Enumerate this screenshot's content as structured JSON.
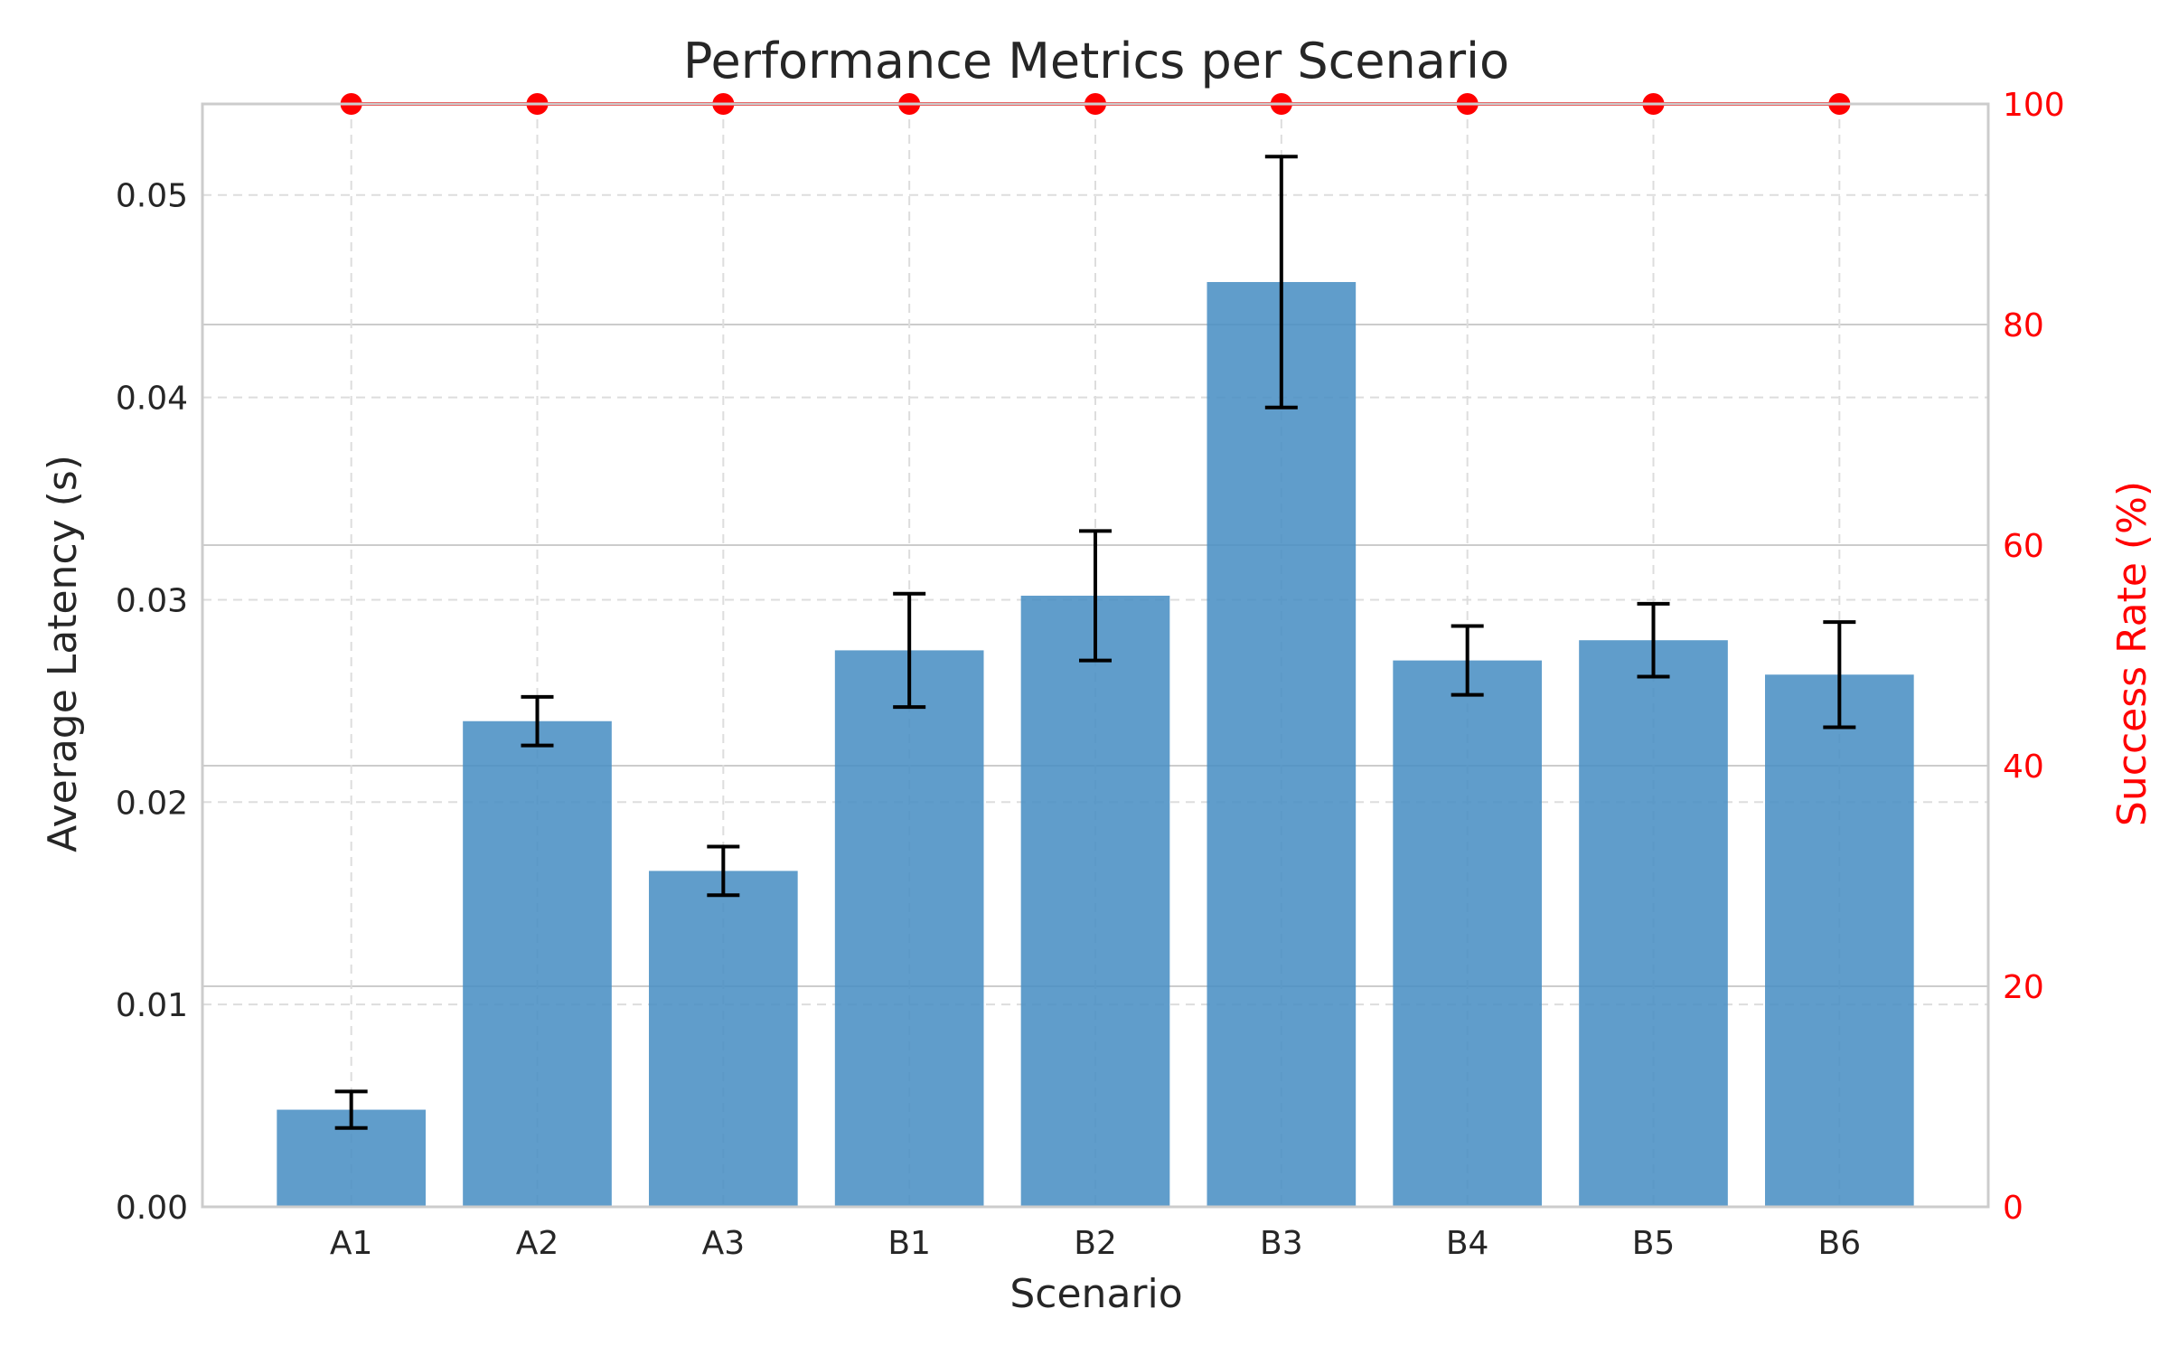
{
  "chart_data": {
    "type": "bar",
    "title": "Performance Metrics per Scenario",
    "xlabel": "Scenario",
    "ylabel": "Average Latency (s)",
    "y2label": "Success Rate (%)",
    "categories": [
      "A1",
      "A2",
      "A3",
      "B1",
      "B2",
      "B3",
      "B4",
      "B5",
      "B6"
    ],
    "series": [
      {
        "type": "bar",
        "axis": "left",
        "values": [
          0.0048,
          0.024,
          0.0166,
          0.0275,
          0.0302,
          0.0457,
          0.027,
          0.028,
          0.0263
        ],
        "errors": [
          0.0009,
          0.0012,
          0.0012,
          0.0028,
          0.0032,
          0.0062,
          0.0017,
          0.0018,
          0.0026
        ],
        "color": "#4a90c4"
      },
      {
        "type": "line",
        "axis": "right",
        "values": [
          100,
          100,
          100,
          100,
          100,
          100,
          100,
          100,
          100
        ],
        "color": "#ff0000"
      }
    ],
    "ylim": [
      0,
      0.0545
    ],
    "yticks": [
      0.0,
      0.01,
      0.02,
      0.03,
      0.04,
      0.05
    ],
    "ytick_labels": [
      "0.00",
      "0.01",
      "0.02",
      "0.03",
      "0.04",
      "0.05"
    ],
    "y2lim": [
      0,
      100
    ],
    "y2ticks": [
      0,
      20,
      40,
      60,
      80,
      100
    ],
    "y2tick_labels": [
      "0",
      "20",
      "40",
      "60",
      "80",
      "100"
    ],
    "grid": true,
    "colors": {
      "bar": "#4a90c4",
      "errorbar": "#000000",
      "line": "#ff0000",
      "grid": "#dddddd",
      "right_grid": "#cccccc",
      "spine": "#cccccc",
      "text": "#262626",
      "right_text": "#ff0000"
    }
  }
}
